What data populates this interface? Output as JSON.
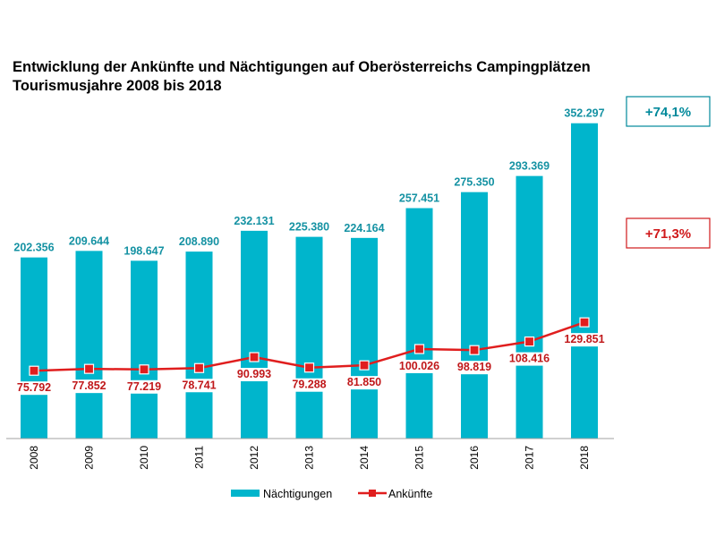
{
  "header": {
    "title_line1": "Entwicklung der Ankünfte und Nächtigungen auf Oberösterreichs Campingplätzen",
    "title_line2": "Tourismusjahre 2008 bis 2018"
  },
  "chart_data": {
    "type": "bar",
    "title": "Entwicklung der Ankünfte und Nächtigungen auf Oberösterreichs Campingplätzen",
    "subtitle": "Tourismusjahre 2008 bis 2018",
    "categories": [
      "2008",
      "2009",
      "2010",
      "2011",
      "2012",
      "2013",
      "2014",
      "2015",
      "2016",
      "2017",
      "2018"
    ],
    "series": [
      {
        "name": "Nächtigungen",
        "type": "bar",
        "values": [
          202356,
          209644,
          198647,
          208890,
          232131,
          225380,
          224164,
          257451,
          275350,
          293369,
          352297
        ],
        "labels": [
          "202.356",
          "209.644",
          "198.647",
          "208.890",
          "232.131",
          "225.380",
          "224.164",
          "257.451",
          "275.350",
          "293.369",
          "352.297"
        ],
        "color": "#00B5CC"
      },
      {
        "name": "Ankünfte",
        "type": "line",
        "values": [
          75792,
          77852,
          77219,
          78741,
          90993,
          79288,
          81850,
          100026,
          98819,
          108416,
          129851
        ],
        "labels": [
          "75.792",
          "77.852",
          "77.219",
          "78.741",
          "90.993",
          "79.288",
          "81.850",
          "100.026",
          "98.819",
          "108.416",
          "129.851"
        ],
        "color": "#E01E1E"
      }
    ],
    "callouts": {
      "bars": {
        "text": "+74,1%",
        "color": "#00899B"
      },
      "line": {
        "text": "+71,3%",
        "color": "#D0191B"
      }
    },
    "legend": {
      "position": "bottom"
    },
    "grid": false
  }
}
